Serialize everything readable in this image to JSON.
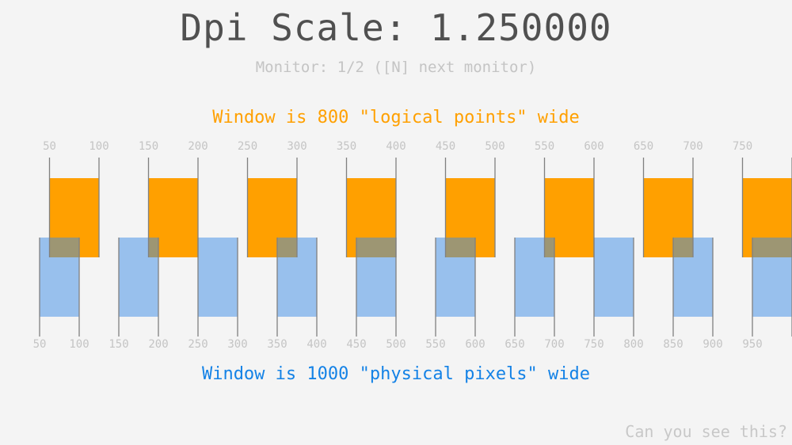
{
  "header": {
    "title": "Dpi Scale: 1.250000",
    "subtitle": "Monitor: 1/2 ([N] next monitor)"
  },
  "dpi_scale": 1.25,
  "logical": {
    "caption": "Window is 800 \"logical points\" wide",
    "color": "#ffa000",
    "tick_labels": [
      "50",
      "100",
      "150",
      "200",
      "250",
      "300",
      "350",
      "400",
      "450",
      "500",
      "550",
      "600",
      "650",
      "700",
      "750"
    ],
    "boxes": [
      [
        50,
        100
      ],
      [
        150,
        200
      ],
      [
        250,
        300
      ],
      [
        350,
        400
      ],
      [
        450,
        500
      ],
      [
        550,
        600
      ],
      [
        650,
        700
      ],
      [
        750,
        800
      ]
    ]
  },
  "physical": {
    "caption": "Window is 1000 \"physical pixels\" wide",
    "color": "#1482e6",
    "box_color": "#96c4f2",
    "tick_labels": [
      "50",
      "100",
      "150",
      "200",
      "250",
      "300",
      "350",
      "400",
      "450",
      "500",
      "550",
      "600",
      "650",
      "700",
      "750",
      "800",
      "850",
      "900",
      "950"
    ],
    "boxes": [
      [
        50,
        100
      ],
      [
        150,
        200
      ],
      [
        250,
        300
      ],
      [
        350,
        400
      ],
      [
        450,
        500
      ],
      [
        550,
        600
      ],
      [
        650,
        700
      ],
      [
        750,
        800
      ],
      [
        850,
        900
      ],
      [
        950,
        1000
      ]
    ]
  },
  "footer": {
    "text": "Can you see this?"
  }
}
